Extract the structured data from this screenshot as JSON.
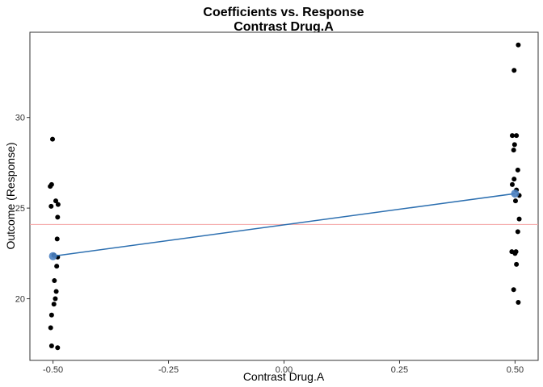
{
  "chart_data": {
    "type": "scatter",
    "title": "Coefficients vs. Response",
    "subtitle": "Contrast Drug.A",
    "xlabel": "Contrast Drug.A",
    "ylabel": "Outcome (Response)",
    "xlim": [
      -0.55,
      0.55
    ],
    "ylim": [
      16.6,
      34.7
    ],
    "x_ticks": [
      -0.5,
      -0.25,
      0.0,
      0.25,
      0.5
    ],
    "x_tick_labels": [
      "-0.50",
      "-0.25",
      "0.00",
      "0.25",
      "0.50"
    ],
    "y_ticks": [
      20,
      25,
      30
    ],
    "y_tick_labels": [
      "20",
      "25",
      "30"
    ],
    "grid": false,
    "legend": "none",
    "colors": {
      "points": "#000000",
      "fit_line": "#2c6fb0",
      "fit_points": "#4a7fc0",
      "reference_line": "#f4a3a3",
      "panel_border": "#333333"
    },
    "series": [
      {
        "values": [
          {
            "x": -0.506,
            "y": 26.2
          },
          {
            "x": -0.503,
            "y": 26.3
          },
          {
            "x": -0.504,
            "y": 25.1
          },
          {
            "x": -0.501,
            "y": 28.8
          },
          {
            "x": -0.494,
            "y": 25.4
          },
          {
            "x": -0.489,
            "y": 25.2
          },
          {
            "x": -0.49,
            "y": 24.5
          },
          {
            "x": -0.491,
            "y": 23.3
          },
          {
            "x": -0.498,
            "y": 22.4
          },
          {
            "x": -0.49,
            "y": 22.3
          },
          {
            "x": -0.492,
            "y": 21.8
          },
          {
            "x": -0.497,
            "y": 21.0
          },
          {
            "x": -0.493,
            "y": 20.4
          },
          {
            "x": -0.495,
            "y": 20.0
          },
          {
            "x": -0.498,
            "y": 19.7
          },
          {
            "x": -0.503,
            "y": 19.1
          },
          {
            "x": -0.505,
            "y": 18.4
          },
          {
            "x": -0.503,
            "y": 17.4
          },
          {
            "x": -0.49,
            "y": 17.3
          },
          {
            "x": 0.507,
            "y": 34.0
          },
          {
            "x": 0.498,
            "y": 32.6
          },
          {
            "x": 0.494,
            "y": 29.0
          },
          {
            "x": 0.503,
            "y": 29.0
          },
          {
            "x": 0.499,
            "y": 28.5
          },
          {
            "x": 0.497,
            "y": 28.2
          },
          {
            "x": 0.506,
            "y": 27.1
          },
          {
            "x": 0.498,
            "y": 26.6
          },
          {
            "x": 0.494,
            "y": 26.3
          },
          {
            "x": 0.503,
            "y": 26.0
          },
          {
            "x": 0.509,
            "y": 25.7
          },
          {
            "x": 0.501,
            "y": 25.4
          },
          {
            "x": 0.509,
            "y": 24.4
          },
          {
            "x": 0.506,
            "y": 23.7
          },
          {
            "x": 0.493,
            "y": 22.6
          },
          {
            "x": 0.5,
            "y": 22.5
          },
          {
            "x": 0.502,
            "y": 22.6
          },
          {
            "x": 0.503,
            "y": 21.9
          },
          {
            "x": 0.497,
            "y": 20.5
          },
          {
            "x": 0.507,
            "y": 19.8
          }
        ]
      },
      {
        "type": "line",
        "values": [
          {
            "x": -0.5,
            "y": 22.35
          },
          {
            "x": 0.5,
            "y": 25.8
          }
        ]
      }
    ],
    "reference_line": {
      "orientation": "horizontal",
      "y": 24.1
    }
  }
}
